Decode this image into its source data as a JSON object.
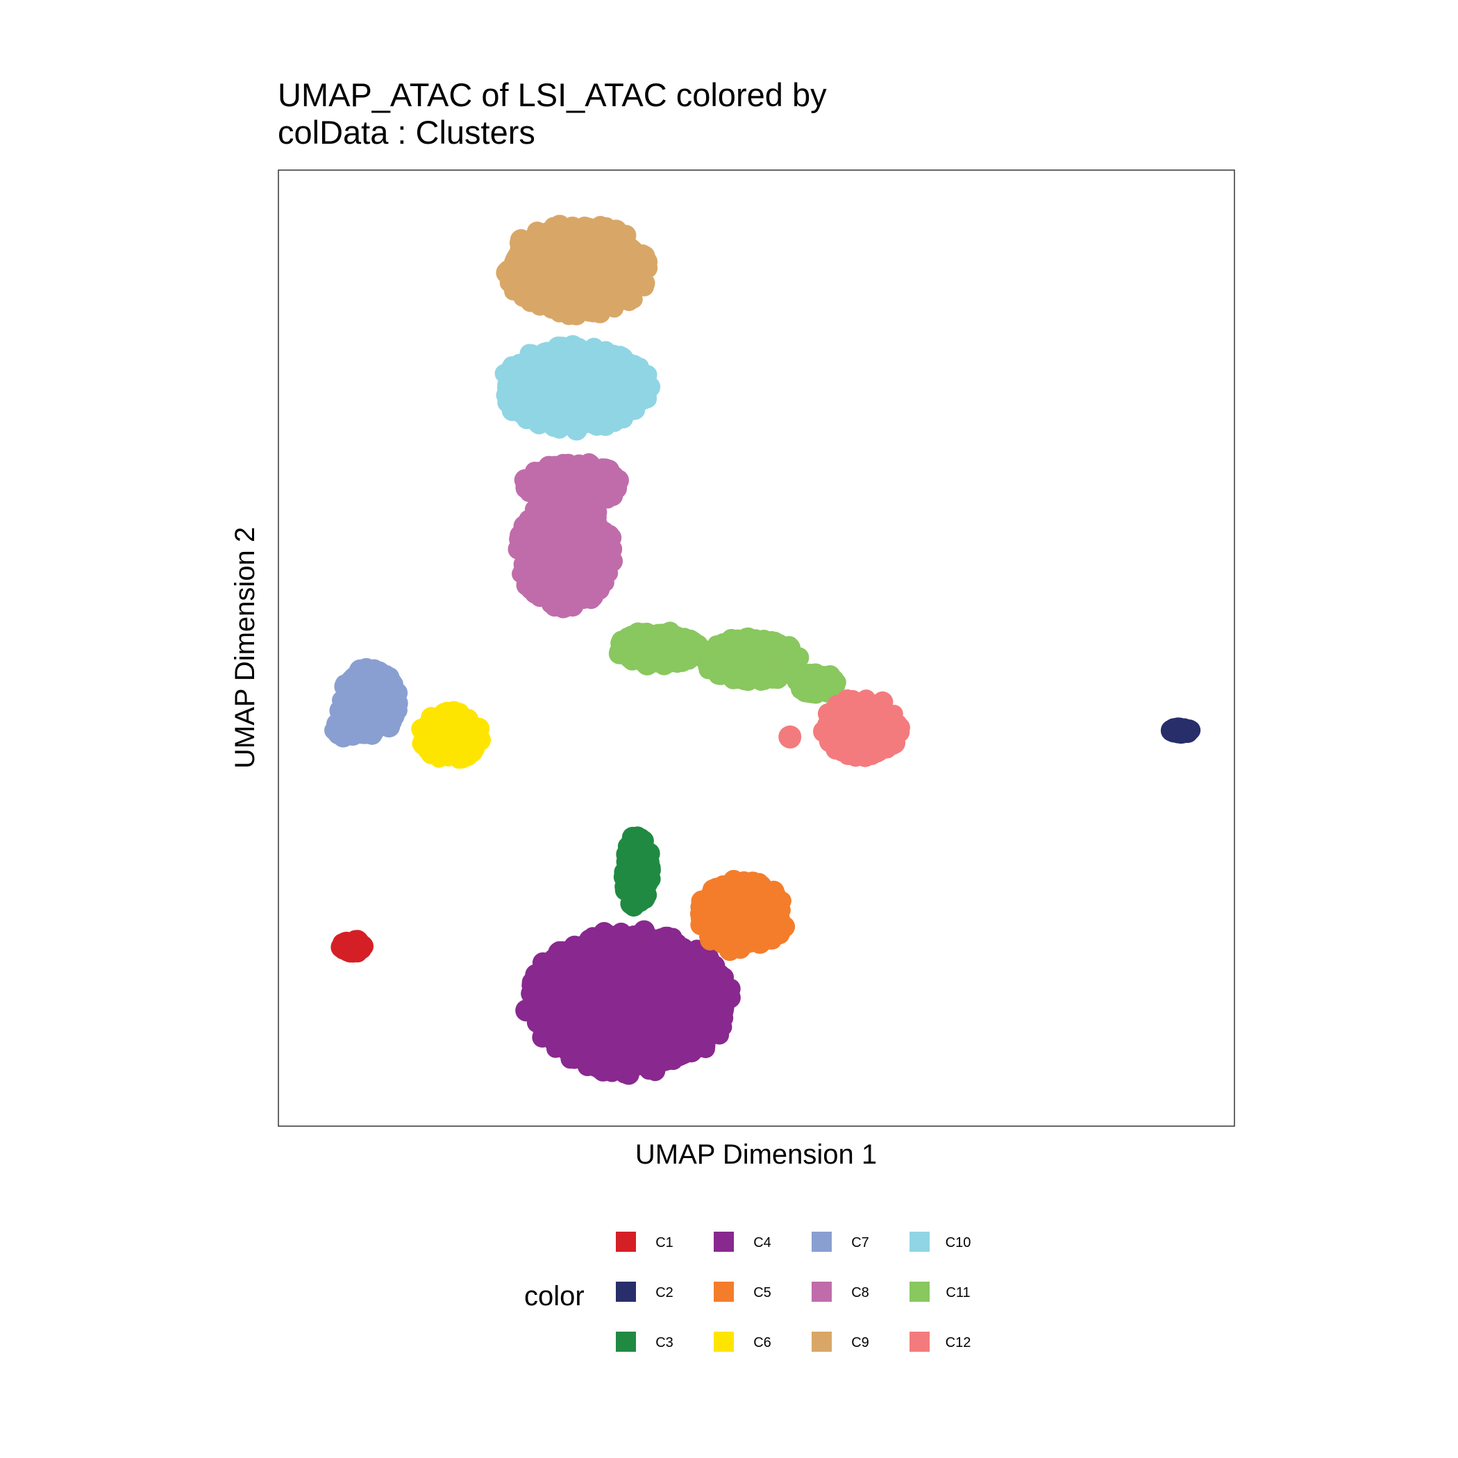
{
  "chart_data": {
    "type": "scatter",
    "title_lines": [
      "UMAP_ATAC of LSI_ATAC  colored by",
      "colData :  Clusters"
    ],
    "xlabel": "UMAP Dimension 1",
    "ylabel": "UMAP Dimension 2",
    "xlim": [
      0,
      100
    ],
    "ylim": [
      0,
      100
    ],
    "grid": false,
    "axis_ticks": false,
    "legend_title": "color",
    "legend_position": "bottom",
    "series": [
      {
        "name": "C1",
        "color": "#D51F26",
        "blobs": [
          {
            "cx": 7.7,
            "cy": 18.8,
            "rx": 2.0,
            "ry": 1.4
          }
        ]
      },
      {
        "name": "C2",
        "color": "#272E6A",
        "blobs": [
          {
            "cx": 94.4,
            "cy": 41.4,
            "rx": 1.8,
            "ry": 1.0
          }
        ]
      },
      {
        "name": "C3",
        "color": "#208A42",
        "blobs": [
          {
            "cx": 37.5,
            "cy": 26.6,
            "rx": 2.2,
            "ry": 4.6
          }
        ]
      },
      {
        "name": "C4",
        "color": "#89288F",
        "blobs": [
          {
            "cx": 36.7,
            "cy": 13.0,
            "rx": 11.6,
            "ry": 8.3
          },
          {
            "cx": 36.5,
            "cy": 17.4,
            "rx": 8.5,
            "ry": 3.2
          }
        ]
      },
      {
        "name": "C5",
        "color": "#F47D2B",
        "blobs": [
          {
            "cx": 48.5,
            "cy": 22.0,
            "rx": 5.4,
            "ry": 4.5
          }
        ]
      },
      {
        "name": "C6",
        "color": "#FEE500",
        "blobs": [
          {
            "cx": 18.0,
            "cy": 40.8,
            "rx": 3.9,
            "ry": 3.3
          }
        ]
      },
      {
        "name": "C7",
        "color": "#8A9FD1",
        "blobs": [
          {
            "cx": 9.5,
            "cy": 44.4,
            "rx": 3.9,
            "ry": 4.2
          },
          {
            "cx": 7.0,
            "cy": 41.5,
            "rx": 2.0,
            "ry": 1.5
          }
        ]
      },
      {
        "name": "C8",
        "color": "#C06CAB",
        "blobs": [
          {
            "cx": 30.0,
            "cy": 60.0,
            "rx": 5.8,
            "ry": 6.6
          },
          {
            "cx": 30.8,
            "cy": 67.2,
            "rx": 5.8,
            "ry": 3.0
          }
        ]
      },
      {
        "name": "C9",
        "color": "#D8A767",
        "blobs": [
          {
            "cx": 31.3,
            "cy": 89.6,
            "rx": 8.4,
            "ry": 5.6
          }
        ]
      },
      {
        "name": "C10",
        "color": "#90D5E4",
        "blobs": [
          {
            "cx": 31.0,
            "cy": 77.3,
            "rx": 8.7,
            "ry": 5.2
          }
        ]
      },
      {
        "name": "C11",
        "color": "#89C75F",
        "blobs": [
          {
            "cx": 39.7,
            "cy": 50.0,
            "rx": 5.0,
            "ry": 2.6
          },
          {
            "cx": 49.5,
            "cy": 48.8,
            "rx": 5.8,
            "ry": 3.1
          },
          {
            "cx": 56.3,
            "cy": 46.3,
            "rx": 3.0,
            "ry": 1.8
          }
        ]
      },
      {
        "name": "C12",
        "color": "#F37B7D",
        "blobs": [
          {
            "cx": 61.0,
            "cy": 41.7,
            "rx": 4.8,
            "ry": 3.9
          },
          {
            "cx": 53.5,
            "cy": 40.7,
            "rx": 0.8,
            "ry": 0.8
          }
        ]
      }
    ]
  }
}
